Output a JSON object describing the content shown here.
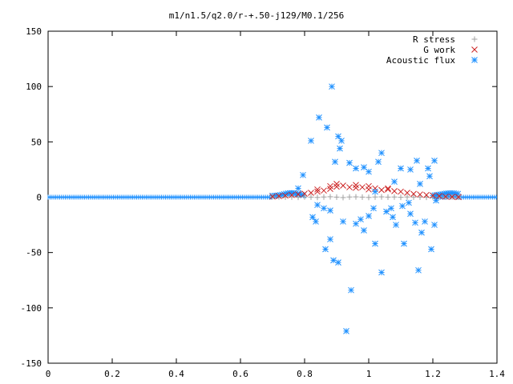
{
  "chart_data": {
    "type": "scatter",
    "title": "m1/n1.5/q2.0/r-+.50-j129/M0.1/256",
    "xlabel": "",
    "ylabel": "",
    "xlim": [
      0,
      1.4
    ],
    "ylim": [
      -150,
      150
    ],
    "xticks": [
      0,
      0.2,
      0.4,
      0.6,
      0.8,
      1,
      1.2,
      1.4
    ],
    "xtick_labels": [
      "0",
      "0.2",
      "0.4",
      "0.6",
      "0.8",
      "1",
      "1.2",
      "1.4"
    ],
    "yticks": [
      -150,
      -100,
      -50,
      0,
      50,
      100,
      150
    ],
    "ytick_labels": [
      "-150",
      "-100",
      "-50",
      "0",
      "50",
      "100",
      "150"
    ],
    "grid": false,
    "legend_position": "top-right",
    "series": [
      {
        "name": "R stress",
        "marker": "plus",
        "color": "#a0a0a0",
        "points": [
          [
            0.7,
            0.3
          ],
          [
            0.72,
            0.2
          ],
          [
            0.74,
            0.1
          ],
          [
            0.76,
            0.2
          ],
          [
            0.78,
            -0.1
          ],
          [
            0.8,
            0.3
          ],
          [
            0.82,
            0.1
          ],
          [
            0.84,
            -0.2
          ],
          [
            0.86,
            0.2
          ],
          [
            0.88,
            0.4
          ],
          [
            0.9,
            0.1
          ],
          [
            0.92,
            -0.3
          ],
          [
            0.94,
            0.2
          ],
          [
            0.96,
            0.3
          ],
          [
            0.98,
            0.1
          ],
          [
            1.0,
            -0.2
          ],
          [
            1.02,
            0.2
          ],
          [
            1.04,
            0.3
          ],
          [
            1.06,
            0.1
          ],
          [
            1.08,
            0.2
          ],
          [
            1.1,
            -0.1
          ],
          [
            1.12,
            0.2
          ],
          [
            1.14,
            0.1
          ],
          [
            1.16,
            0.1
          ],
          [
            1.18,
            -0.1
          ],
          [
            1.2,
            0.1
          ],
          [
            1.22,
            0.1
          ],
          [
            1.24,
            0.0
          ],
          [
            1.26,
            0.0
          ],
          [
            1.28,
            0.0
          ]
        ]
      },
      {
        "name": "G work",
        "marker": "cross",
        "color": "#cc2222",
        "points": [
          [
            0.7,
            0.5
          ],
          [
            0.72,
            1.0
          ],
          [
            0.74,
            1.5
          ],
          [
            0.76,
            2.0
          ],
          [
            0.78,
            2.6
          ],
          [
            0.8,
            3.2
          ],
          [
            0.82,
            4.0
          ],
          [
            0.84,
            5.0
          ],
          [
            0.86,
            6.0
          ],
          [
            0.88,
            7.5
          ],
          [
            0.9,
            9.5
          ],
          [
            0.92,
            10.5
          ],
          [
            0.94,
            9.0
          ],
          [
            0.96,
            8.5
          ],
          [
            0.98,
            9.0
          ],
          [
            1.0,
            7.0
          ],
          [
            1.02,
            8.0
          ],
          [
            1.04,
            6.5
          ],
          [
            1.06,
            7.0
          ],
          [
            1.08,
            5.5
          ],
          [
            1.1,
            5.0
          ],
          [
            1.12,
            4.0
          ],
          [
            1.14,
            3.0
          ],
          [
            1.16,
            2.5
          ],
          [
            1.18,
            2.0
          ],
          [
            1.2,
            1.5
          ],
          [
            1.22,
            1.0
          ],
          [
            1.24,
            0.5
          ],
          [
            1.26,
            0.3
          ],
          [
            1.28,
            0.1
          ],
          [
            0.9,
            12.0
          ],
          [
            0.96,
            11.0
          ],
          [
            1.0,
            10.0
          ],
          [
            1.06,
            8.0
          ],
          [
            0.84,
            7.0
          ],
          [
            0.88,
            10.0
          ]
        ]
      },
      {
        "name": "Acoustic flux",
        "marker": "star",
        "color": "#1e90ff",
        "points": [
          [
            0.885,
            100
          ],
          [
            0.845,
            72
          ],
          [
            0.87,
            63
          ],
          [
            0.82,
            51
          ],
          [
            0.905,
            55
          ],
          [
            0.915,
            51
          ],
          [
            0.91,
            44
          ],
          [
            1.04,
            40
          ],
          [
            1.03,
            32
          ],
          [
            0.94,
            31
          ],
          [
            1.0,
            23
          ],
          [
            0.985,
            27
          ],
          [
            0.96,
            26
          ],
          [
            1.15,
            33
          ],
          [
            1.185,
            26
          ],
          [
            1.205,
            33
          ],
          [
            1.1,
            26
          ],
          [
            1.13,
            25
          ],
          [
            0.895,
            32
          ],
          [
            0.795,
            20
          ],
          [
            0.78,
            8
          ],
          [
            1.19,
            19
          ],
          [
            1.08,
            14
          ],
          [
            1.16,
            12
          ],
          [
            1.02,
            5
          ],
          [
            0.86,
            -10
          ],
          [
            0.88,
            -12
          ],
          [
            0.84,
            -7
          ],
          [
            0.825,
            -18
          ],
          [
            0.835,
            -22
          ],
          [
            0.88,
            -38
          ],
          [
            0.865,
            -47
          ],
          [
            0.89,
            -57
          ],
          [
            0.905,
            -59
          ],
          [
            0.945,
            -84
          ],
          [
            0.93,
            -121
          ],
          [
            1.04,
            -68
          ],
          [
            1.155,
            -66
          ],
          [
            1.195,
            -47
          ],
          [
            1.11,
            -42
          ],
          [
            1.02,
            -42
          ],
          [
            0.92,
            -22
          ],
          [
            0.96,
            -24
          ],
          [
            0.985,
            -30
          ],
          [
            0.975,
            -20
          ],
          [
            1.0,
            -17
          ],
          [
            1.015,
            -10
          ],
          [
            1.055,
            -13
          ],
          [
            1.075,
            -18
          ],
          [
            1.085,
            -25
          ],
          [
            1.13,
            -15
          ],
          [
            1.145,
            -23
          ],
          [
            1.165,
            -32
          ],
          [
            1.175,
            -22
          ],
          [
            1.205,
            -25
          ],
          [
            1.07,
            -10
          ],
          [
            1.105,
            -8
          ],
          [
            1.125,
            -5
          ],
          [
            1.21,
            -3
          ]
        ]
      }
    ]
  }
}
